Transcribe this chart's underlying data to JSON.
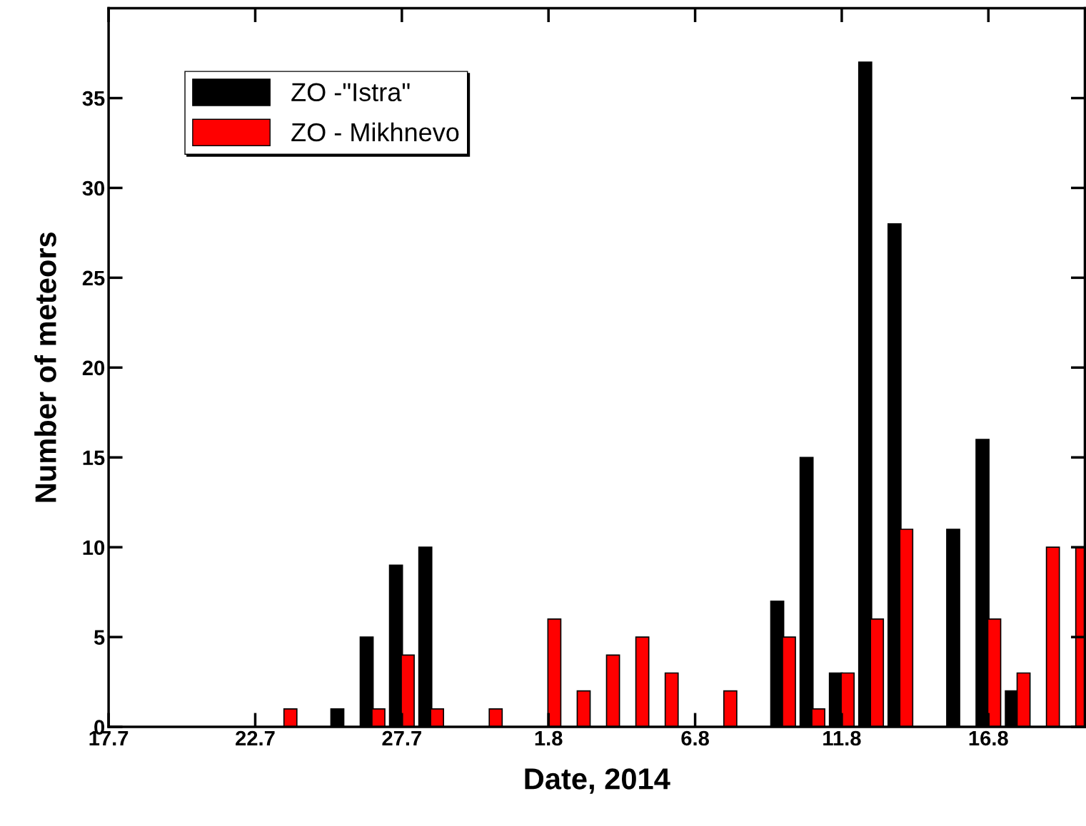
{
  "chart_data": {
    "type": "bar",
    "xlabel": "Date, 2014",
    "ylabel": "Number of meteors",
    "series": [
      {
        "name": "ZO -\"Istra\"",
        "color": "#000000",
        "x": [
          "2014-07-25",
          "2014-07-26",
          "2014-07-27",
          "2014-07-28",
          "2014-08-09",
          "2014-08-10",
          "2014-08-11",
          "2014-08-12",
          "2014-08-13",
          "2014-08-15",
          "2014-08-16",
          "2014-08-17"
        ],
        "values": [
          1,
          5,
          9,
          10,
          7,
          15,
          3,
          37,
          28,
          11,
          16,
          2
        ]
      },
      {
        "name": "ZO - Mikhnevo",
        "color": "#ff0000",
        "x": [
          "2014-07-23",
          "2014-07-26",
          "2014-07-27",
          "2014-07-28",
          "2014-07-30",
          "2014-08-01",
          "2014-08-02",
          "2014-08-03",
          "2014-08-04",
          "2014-08-05",
          "2014-08-07",
          "2014-08-09",
          "2014-08-10",
          "2014-08-11",
          "2014-08-12",
          "2014-08-13",
          "2014-08-16",
          "2014-08-17",
          "2014-08-18",
          "2014-08-19"
        ],
        "values": [
          1,
          1,
          4,
          1,
          1,
          6,
          2,
          4,
          5,
          3,
          2,
          5,
          1,
          3,
          6,
          11,
          6,
          3,
          10,
          10
        ]
      }
    ],
    "xlim": [
      "2014-07-17",
      "2014-08-19T07:00"
    ],
    "xticks": [
      {
        "value": "2014-07-17",
        "label": "17.7"
      },
      {
        "value": "2014-07-22",
        "label": "22.7"
      },
      {
        "value": "2014-07-27",
        "label": "27.7"
      },
      {
        "value": "2014-08-01",
        "label": "1.8"
      },
      {
        "value": "2014-08-06",
        "label": "6.8"
      },
      {
        "value": "2014-08-11",
        "label": "11.8"
      },
      {
        "value": "2014-08-16",
        "label": "16.8"
      }
    ],
    "ylim": [
      0,
      40
    ],
    "yticks": [
      0,
      5,
      10,
      15,
      20,
      25,
      30,
      35
    ],
    "grid": false,
    "legend": "top left"
  }
}
